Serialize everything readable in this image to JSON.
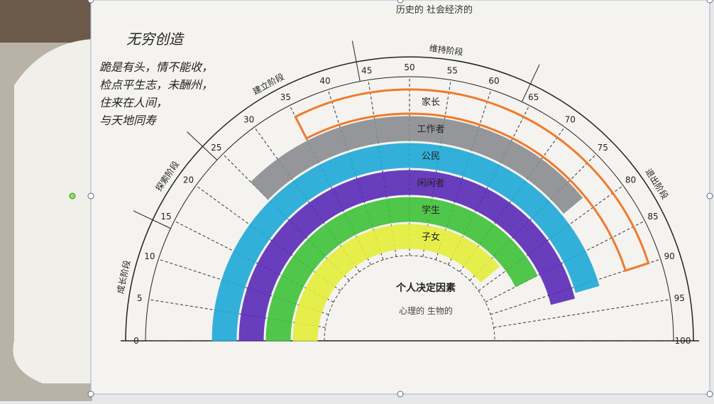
{
  "header": {
    "title": "历史的 社会经济的"
  },
  "note": {
    "title": "无穷创造",
    "lines": [
      "跪是有头，情不能收，",
      "检点平生志，未酬州，",
      "住来在人间，",
      "与天地同寿"
    ]
  },
  "center": {
    "title": "个人决定因素",
    "subtitle": "心理的 生物的"
  },
  "axis": {
    "ticks": [
      0,
      5,
      10,
      15,
      20,
      25,
      30,
      35,
      40,
      45,
      50,
      55,
      60,
      65,
      70,
      75,
      80,
      85,
      90,
      95,
      100
    ]
  },
  "stages": [
    {
      "name": "成长阶段",
      "from": 0,
      "to": 14
    },
    {
      "name": "探索阶段",
      "from": 14,
      "to": 24
    },
    {
      "name": "建立阶段",
      "from": 24,
      "to": 44
    },
    {
      "name": "维持阶段",
      "from": 44,
      "to": 64
    },
    {
      "name": "退出阶段",
      "from": 64,
      "to": 100
    }
  ],
  "roles": [
    {
      "name": "家长",
      "from": 35,
      "to": 90,
      "color": "#f07a2a"
    },
    {
      "name": "工作者",
      "from": 25,
      "to": 78,
      "color": "#8a8c90"
    },
    {
      "name": "公民",
      "from": 0,
      "to": 91,
      "color": "#1fa9d8"
    },
    {
      "name": "闲闲者",
      "from": 0,
      "to": 92,
      "color": "#5a2bb8"
    },
    {
      "name": "学生",
      "from": 0,
      "to": 85,
      "color": "#3fc23a"
    },
    {
      "name": "子女",
      "from": 0,
      "to": 78,
      "color": "#e4ee3a"
    }
  ]
}
